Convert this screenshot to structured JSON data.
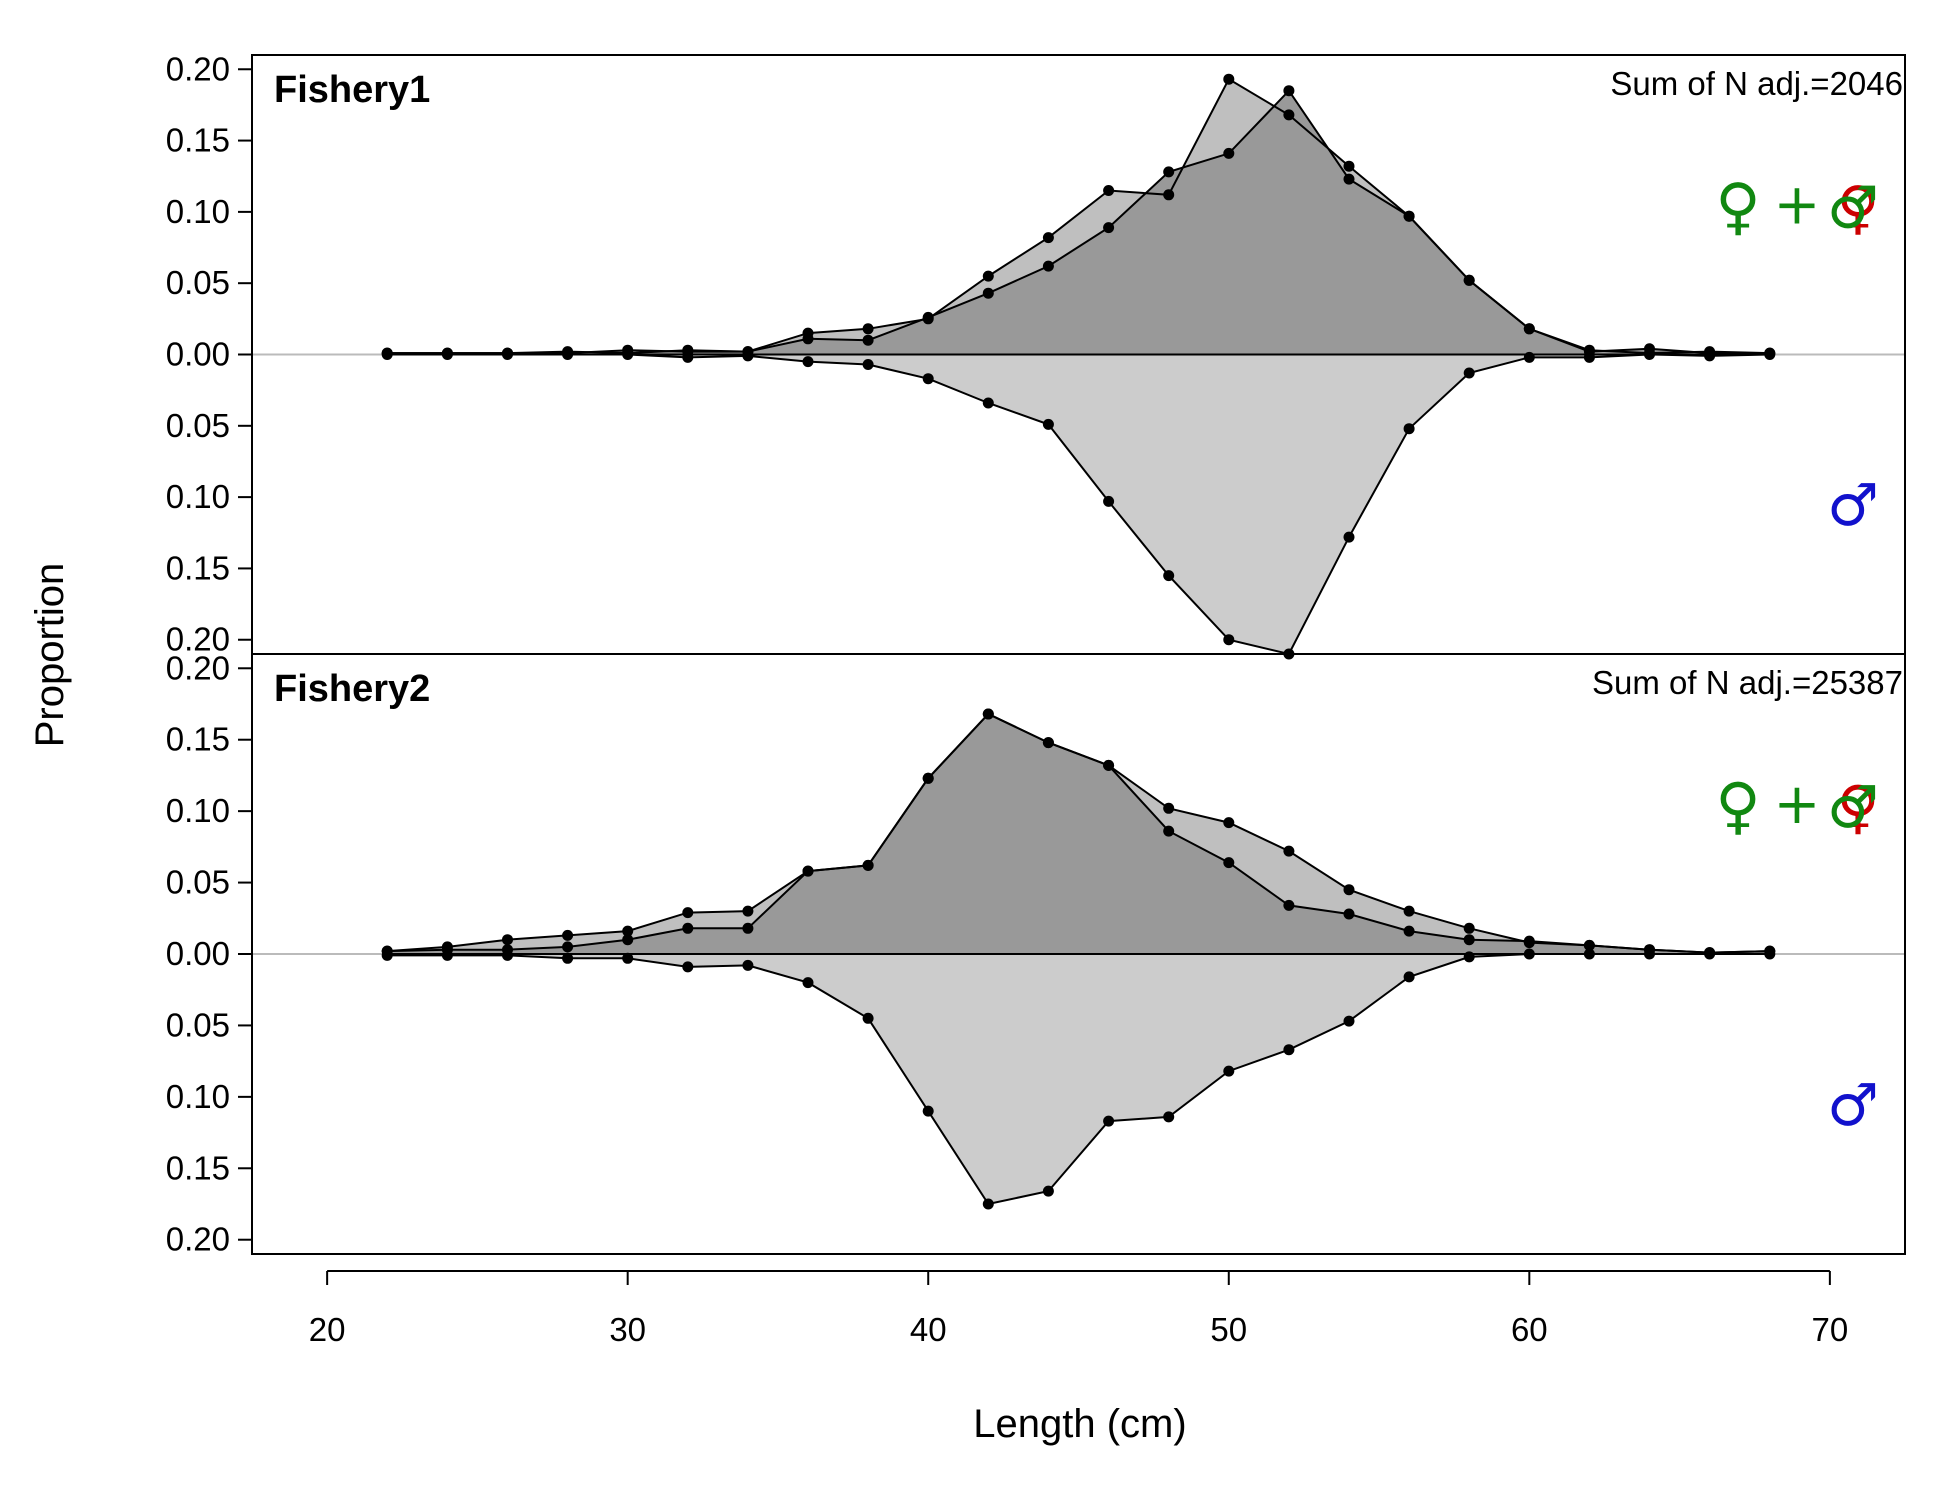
{
  "chart_data": {
    "type": "area",
    "xlabel": "Length (cm)",
    "ylabel": "Proportion",
    "xlim": [
      17.5,
      72.5
    ],
    "x_ticks": [
      20,
      30,
      40,
      50,
      60,
      70
    ],
    "ylim": [
      -0.21,
      0.21
    ],
    "y_ticks": [
      0.2,
      0.15,
      0.1,
      0.05,
      0.0,
      -0.05,
      -0.1,
      -0.15,
      -0.2
    ],
    "y_tick_labels": [
      "0.20",
      "0.15",
      "0.10",
      "0.05",
      "0.00",
      "0.05",
      "0.10",
      "0.15",
      "0.20"
    ],
    "x": [
      22,
      24,
      26,
      28,
      30,
      32,
      34,
      36,
      38,
      40,
      42,
      44,
      46,
      48,
      50,
      52,
      54,
      56,
      58,
      60,
      62,
      64,
      66,
      68
    ],
    "legend_symbols": {
      "female": "♀",
      "male": "♂",
      "plus": "+",
      "combined_female": "♀",
      "combined_male": "♂"
    },
    "colors": {
      "combined_fill": "#999999",
      "female_fill": "#bfbfbf",
      "male_fill": "#cccccc",
      "female_symbol": "#118811",
      "male_symbol": "#1111cc",
      "combined_accent": "#cc0000",
      "zero_line": "#bbbbbb"
    },
    "panels": [
      {
        "title": "Fishery1",
        "note": "Sum of N adj.=2046",
        "female": [
          0.001,
          0.001,
          0.001,
          0.002,
          0.001,
          0.003,
          0.002,
          0.015,
          0.018,
          0.025,
          0.055,
          0.082,
          0.115,
          0.112,
          0.193,
          0.168,
          0.132,
          0.097,
          0.052,
          0.018,
          0.003,
          0.001,
          0.002,
          0.001
        ],
        "combined": [
          0.001,
          0.001,
          0.001,
          0.001,
          0.003,
          0.002,
          0.002,
          0.011,
          0.01,
          0.026,
          0.043,
          0.062,
          0.089,
          0.128,
          0.141,
          0.185,
          0.123,
          0.097,
          0.052,
          0.018,
          0.002,
          0.004,
          0.001,
          0.001
        ],
        "male": [
          0.0,
          0.0,
          0.0,
          0.0,
          0.0,
          -0.002,
          -0.001,
          -0.005,
          -0.007,
          -0.017,
          -0.034,
          -0.049,
          -0.103,
          -0.155,
          -0.2,
          -0.21,
          -0.128,
          -0.052,
          -0.013,
          -0.002,
          -0.002,
          -0.0,
          -0.001,
          -0.0
        ]
      },
      {
        "title": "Fishery2",
        "note": "Sum of N adj.=25387",
        "female": [
          0.002,
          0.005,
          0.01,
          0.013,
          0.016,
          0.029,
          0.03,
          0.058,
          0.062,
          0.123,
          0.168,
          0.148,
          0.132,
          0.102,
          0.092,
          0.072,
          0.045,
          0.03,
          0.018,
          0.008,
          0.006,
          0.003,
          0.001,
          0.002
        ],
        "combined": [
          0.002,
          0.003,
          0.003,
          0.005,
          0.01,
          0.018,
          0.018,
          0.058,
          0.062,
          0.123,
          0.168,
          0.148,
          0.132,
          0.086,
          0.064,
          0.034,
          0.028,
          0.016,
          0.01,
          0.009,
          0.006,
          0.003,
          0.001,
          0.002
        ],
        "male": [
          -0.001,
          -0.001,
          -0.001,
          -0.003,
          -0.003,
          -0.009,
          -0.008,
          -0.02,
          -0.045,
          -0.11,
          -0.175,
          -0.166,
          -0.117,
          -0.114,
          -0.082,
          -0.067,
          -0.047,
          -0.016,
          -0.002,
          -0.0,
          -0.0,
          -0.0,
          -0.0,
          -0.0
        ]
      }
    ]
  }
}
